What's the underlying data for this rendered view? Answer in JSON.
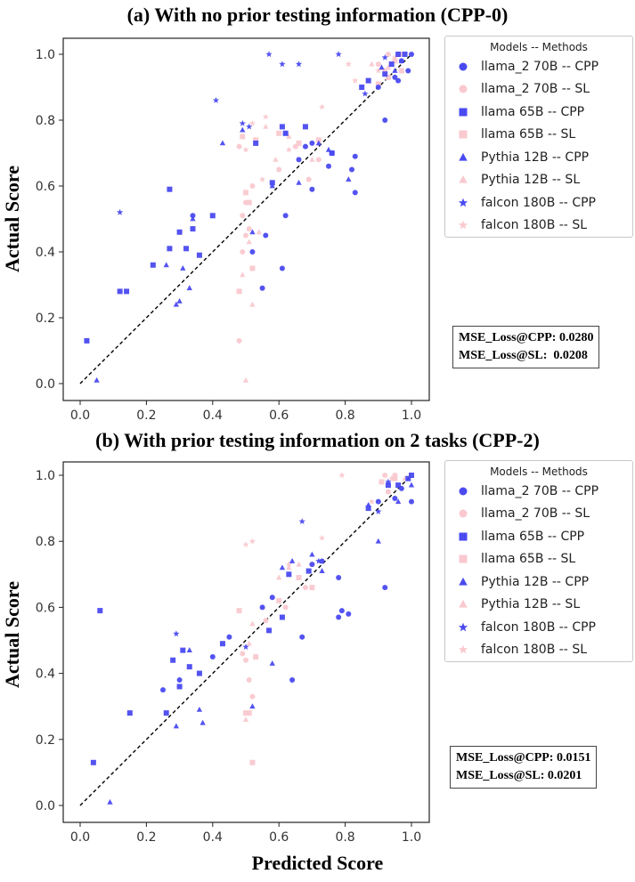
{
  "legend": {
    "title": "Models -- Methods",
    "entries": [
      {
        "label": "llama_2 70B -- CPP",
        "marker": "circle",
        "color": "#4a4af0"
      },
      {
        "label": "llama_2 70B -- SL",
        "marker": "circle",
        "color": "#f9c9cf"
      },
      {
        "label": "llama 65B -- CPP",
        "marker": "square",
        "color": "#4a4af0"
      },
      {
        "label": "llama 65B -- SL",
        "marker": "square",
        "color": "#f9c9cf"
      },
      {
        "label": "Pythia 12B -- CPP",
        "marker": "triangle",
        "color": "#4a4af0"
      },
      {
        "label": "Pythia 12B -- SL",
        "marker": "triangle",
        "color": "#f9c9cf"
      },
      {
        "label": "falcon 180B -- CPP",
        "marker": "star",
        "color": "#4a4af0"
      },
      {
        "label": "falcon 180B -- SL",
        "marker": "star",
        "color": "#f9c9cf"
      }
    ]
  },
  "xlabel": "Predicted Score",
  "chart_data": [
    {
      "type": "scatter",
      "title": "(a) With no prior testing information (CPP-0)",
      "xlabel": "",
      "ylabel": "Actual Score",
      "xlim": [
        0.0,
        1.0
      ],
      "ylim": [
        0.0,
        1.0
      ],
      "xticks": [
        "0.0",
        "0.2",
        "0.4",
        "0.6",
        "0.8",
        "1.0"
      ],
      "yticks": [
        "0.0",
        "0.2",
        "0.4",
        "0.6",
        "0.8",
        "1.0"
      ],
      "reference_line": [
        [
          0,
          0
        ],
        [
          1,
          1
        ]
      ],
      "annotation": [
        "MSE_Loss@CPP: 0.0280",
        "MSE_Loss@SL:  0.0208"
      ],
      "series": [
        {
          "name": "llama_2 70B -- CPP",
          "marker": "circle",
          "color": "#4a4af0",
          "points": [
            [
              0.34,
              0.51
            ],
            [
              0.52,
              0.4
            ],
            [
              0.55,
              0.29
            ],
            [
              0.56,
              0.45
            ],
            [
              0.61,
              0.35
            ],
            [
              0.62,
              0.51
            ],
            [
              0.66,
              0.68
            ],
            [
              0.68,
              0.72
            ],
            [
              0.7,
              0.59
            ],
            [
              0.7,
              0.73
            ],
            [
              0.75,
              0.66
            ],
            [
              0.76,
              0.7
            ],
            [
              0.82,
              0.65
            ],
            [
              0.83,
              0.58
            ],
            [
              0.83,
              0.69
            ],
            [
              0.9,
              0.9
            ],
            [
              0.92,
              0.8
            ],
            [
              0.95,
              0.93
            ],
            [
              0.96,
              0.92
            ],
            [
              0.97,
              0.98
            ],
            [
              0.99,
              0.95
            ],
            [
              1.0,
              1.0
            ]
          ]
        },
        {
          "name": "llama_2 70B -- SL",
          "marker": "circle",
          "color": "#f9c9cf",
          "points": [
            [
              0.48,
              0.13
            ],
            [
              0.48,
              0.72
            ],
            [
              0.49,
              0.4
            ],
            [
              0.49,
              0.51
            ],
            [
              0.5,
              0.45
            ],
            [
              0.5,
              0.55
            ],
            [
              0.51,
              0.47
            ],
            [
              0.52,
              0.6
            ],
            [
              0.6,
              0.65
            ],
            [
              0.65,
              0.72
            ],
            [
              0.69,
              0.62
            ],
            [
              0.72,
              0.68
            ],
            [
              0.9,
              0.97
            ],
            [
              0.92,
              0.95
            ],
            [
              0.93,
              1.0
            ],
            [
              0.94,
              0.97
            ]
          ]
        },
        {
          "name": "llama 65B -- CPP",
          "marker": "square",
          "color": "#4a4af0",
          "points": [
            [
              0.02,
              0.13
            ],
            [
              0.12,
              0.28
            ],
            [
              0.14,
              0.28
            ],
            [
              0.22,
              0.36
            ],
            [
              0.27,
              0.41
            ],
            [
              0.27,
              0.59
            ],
            [
              0.3,
              0.46
            ],
            [
              0.32,
              0.41
            ],
            [
              0.34,
              0.47
            ],
            [
              0.36,
              0.39
            ],
            [
              0.4,
              0.51
            ],
            [
              0.53,
              0.73
            ],
            [
              0.58,
              0.61
            ],
            [
              0.61,
              0.78
            ],
            [
              0.62,
              0.76
            ],
            [
              0.68,
              0.78
            ],
            [
              0.76,
              0.7
            ],
            [
              0.85,
              0.9
            ],
            [
              0.87,
              0.92
            ],
            [
              0.92,
              0.94
            ],
            [
              0.94,
              0.97
            ],
            [
              0.96,
              1.0
            ],
            [
              0.98,
              1.0
            ]
          ]
        },
        {
          "name": "llama 65B -- SL",
          "marker": "square",
          "color": "#f9c9cf",
          "points": [
            [
              0.48,
              0.28
            ],
            [
              0.49,
              0.75
            ],
            [
              0.5,
              0.58
            ],
            [
              0.51,
              0.55
            ],
            [
              0.52,
              0.35
            ],
            [
              0.53,
              0.74
            ],
            [
              0.6,
              0.76
            ],
            [
              0.66,
              0.73
            ],
            [
              0.72,
              0.74
            ],
            [
              0.9,
              0.91
            ],
            [
              0.93,
              0.93
            ],
            [
              0.95,
              0.98
            ],
            [
              0.97,
              0.95
            ]
          ]
        },
        {
          "name": "Pythia 12B -- CPP",
          "marker": "triangle",
          "color": "#4a4af0",
          "points": [
            [
              0.05,
              0.01
            ],
            [
              0.26,
              0.36
            ],
            [
              0.29,
              0.24
            ],
            [
              0.3,
              0.25
            ],
            [
              0.31,
              0.35
            ],
            [
              0.33,
              0.29
            ],
            [
              0.34,
              0.5
            ],
            [
              0.43,
              0.73
            ],
            [
              0.49,
              0.77
            ],
            [
              0.52,
              0.46
            ],
            [
              0.58,
              0.6
            ],
            [
              0.62,
              0.76
            ],
            [
              0.66,
              0.61
            ],
            [
              0.72,
              0.73
            ],
            [
              0.75,
              0.71
            ],
            [
              0.81,
              0.62
            ],
            [
              0.91,
              0.96
            ],
            [
              0.95,
              0.95
            ],
            [
              0.97,
              0.98
            ]
          ]
        },
        {
          "name": "Pythia 12B -- SL",
          "marker": "triangle",
          "color": "#f9c9cf",
          "points": [
            [
              0.49,
              0.33
            ],
            [
              0.5,
              0.01
            ],
            [
              0.51,
              0.43
            ],
            [
              0.52,
              0.24
            ],
            [
              0.54,
              0.46
            ],
            [
              0.56,
              0.78
            ],
            [
              0.59,
              0.68
            ],
            [
              0.63,
              0.75
            ],
            [
              0.7,
              0.68
            ],
            [
              0.88,
              0.97
            ],
            [
              0.93,
              0.96
            ],
            [
              0.97,
              1.0
            ]
          ]
        },
        {
          "name": "falcon 180B -- CPP",
          "marker": "star",
          "color": "#4a4af0",
          "points": [
            [
              0.12,
              0.52
            ],
            [
              0.41,
              0.86
            ],
            [
              0.49,
              0.79
            ],
            [
              0.51,
              0.78
            ],
            [
              0.57,
              1.0
            ],
            [
              0.61,
              0.97
            ],
            [
              0.66,
              0.97
            ],
            [
              0.78,
              1.0
            ],
            [
              0.86,
              0.88
            ],
            [
              0.92,
              0.99
            ]
          ]
        },
        {
          "name": "falcon 180B -- SL",
          "marker": "star",
          "color": "#f9c9cf",
          "points": [
            [
              0.5,
              0.71
            ],
            [
              0.52,
              0.79
            ],
            [
              0.55,
              0.62
            ],
            [
              0.56,
              0.81
            ],
            [
              0.63,
              0.71
            ],
            [
              0.73,
              0.84
            ],
            [
              0.81,
              0.97
            ],
            [
              0.83,
              0.92
            ],
            [
              0.9,
              0.95
            ],
            [
              0.95,
              0.99
            ]
          ]
        }
      ]
    },
    {
      "type": "scatter",
      "title": "(b) With prior testing information on 2 tasks (CPP-2)",
      "xlabel": "Predicted Score",
      "ylabel": "Actual Score",
      "xlim": [
        0.0,
        1.0
      ],
      "ylim": [
        0.0,
        1.0
      ],
      "xticks": [
        "0.0",
        "0.2",
        "0.4",
        "0.6",
        "0.8",
        "1.0"
      ],
      "yticks": [
        "0.0",
        "0.2",
        "0.4",
        "0.6",
        "0.8",
        "1.0"
      ],
      "reference_line": [
        [
          0,
          0
        ],
        [
          1,
          1
        ]
      ],
      "annotation": [
        "MSE_Loss@CPP: 0.0151",
        "MSE_Loss@SL: 0.0201"
      ],
      "series": [
        {
          "name": "llama_2 70B -- CPP",
          "marker": "circle",
          "color": "#4a4af0",
          "points": [
            [
              0.25,
              0.35
            ],
            [
              0.3,
              0.38
            ],
            [
              0.4,
              0.45
            ],
            [
              0.45,
              0.51
            ],
            [
              0.55,
              0.6
            ],
            [
              0.58,
              0.63
            ],
            [
              0.64,
              0.38
            ],
            [
              0.67,
              0.51
            ],
            [
              0.7,
              0.73
            ],
            [
              0.73,
              0.74
            ],
            [
              0.78,
              0.57
            ],
            [
              0.78,
              0.69
            ],
            [
              0.79,
              0.59
            ],
            [
              0.81,
              0.58
            ],
            [
              0.9,
              0.92
            ],
            [
              0.92,
              0.66
            ],
            [
              0.95,
              0.93
            ],
            [
              0.97,
              0.96
            ],
            [
              1.0,
              0.92
            ]
          ]
        },
        {
          "name": "llama_2 70B -- SL",
          "marker": "circle",
          "color": "#f9c9cf",
          "points": [
            [
              0.49,
              0.46
            ],
            [
              0.5,
              0.44
            ],
            [
              0.51,
              0.38
            ],
            [
              0.52,
              0.33
            ],
            [
              0.56,
              0.56
            ],
            [
              0.62,
              0.6
            ],
            [
              0.68,
              0.66
            ],
            [
              0.7,
              0.73
            ],
            [
              0.92,
              1.0
            ],
            [
              0.93,
              0.95
            ],
            [
              0.95,
              1.0
            ]
          ]
        },
        {
          "name": "llama 65B -- CPP",
          "marker": "square",
          "color": "#4a4af0",
          "points": [
            [
              0.04,
              0.13
            ],
            [
              0.06,
              0.59
            ],
            [
              0.15,
              0.28
            ],
            [
              0.26,
              0.28
            ],
            [
              0.28,
              0.44
            ],
            [
              0.3,
              0.36
            ],
            [
              0.31,
              0.47
            ],
            [
              0.33,
              0.42
            ],
            [
              0.36,
              0.4
            ],
            [
              0.43,
              0.49
            ],
            [
              0.57,
              0.53
            ],
            [
              0.61,
              0.57
            ],
            [
              0.63,
              0.7
            ],
            [
              0.69,
              0.71
            ],
            [
              0.87,
              0.9
            ],
            [
              0.93,
              0.97
            ],
            [
              0.96,
              0.97
            ],
            [
              0.99,
              0.99
            ],
            [
              1.0,
              1.0
            ]
          ]
        },
        {
          "name": "llama 65B -- SL",
          "marker": "square",
          "color": "#f9c9cf",
          "points": [
            [
              0.48,
              0.59
            ],
            [
              0.5,
              0.28
            ],
            [
              0.51,
              0.28
            ],
            [
              0.52,
              0.13
            ],
            [
              0.53,
              0.45
            ],
            [
              0.6,
              0.62
            ],
            [
              0.66,
              0.69
            ],
            [
              0.7,
              0.66
            ],
            [
              0.91,
              0.98
            ],
            [
              0.95,
              0.99
            ]
          ]
        },
        {
          "name": "Pythia 12B -- CPP",
          "marker": "triangle",
          "color": "#4a4af0",
          "points": [
            [
              0.09,
              0.01
            ],
            [
              0.29,
              0.24
            ],
            [
              0.33,
              0.47
            ],
            [
              0.36,
              0.29
            ],
            [
              0.37,
              0.25
            ],
            [
              0.52,
              0.3
            ],
            [
              0.58,
              0.43
            ],
            [
              0.61,
              0.72
            ],
            [
              0.64,
              0.74
            ],
            [
              0.7,
              0.76
            ],
            [
              0.73,
              0.71
            ],
            [
              0.87,
              0.91
            ],
            [
              0.9,
              0.8
            ],
            [
              0.96,
              0.92
            ],
            [
              1.0,
              0.97
            ]
          ]
        },
        {
          "name": "Pythia 12B -- SL",
          "marker": "triangle",
          "color": "#f9c9cf",
          "points": [
            [
              0.5,
              0.26
            ],
            [
              0.51,
              0.49
            ],
            [
              0.52,
              0.55
            ],
            [
              0.55,
              0.6
            ],
            [
              0.6,
              0.69
            ],
            [
              0.63,
              0.72
            ],
            [
              0.66,
              0.73
            ],
            [
              0.93,
              0.95
            ],
            [
              0.98,
              0.99
            ]
          ]
        },
        {
          "name": "falcon 180B -- CPP",
          "marker": "star",
          "color": "#4a4af0",
          "points": [
            [
              0.29,
              0.52
            ],
            [
              0.5,
              0.48
            ],
            [
              0.67,
              0.86
            ],
            [
              0.72,
              0.74
            ],
            [
              0.9,
              0.89
            ],
            [
              0.93,
              0.98
            ]
          ]
        },
        {
          "name": "falcon 180B -- SL",
          "marker": "star",
          "color": "#f9c9cf",
          "points": [
            [
              0.5,
              0.79
            ],
            [
              0.52,
              0.8
            ],
            [
              0.63,
              0.73
            ],
            [
              0.73,
              0.81
            ],
            [
              0.79,
              1.0
            ],
            [
              0.88,
              0.92
            ],
            [
              0.94,
              0.99
            ]
          ]
        }
      ]
    }
  ]
}
